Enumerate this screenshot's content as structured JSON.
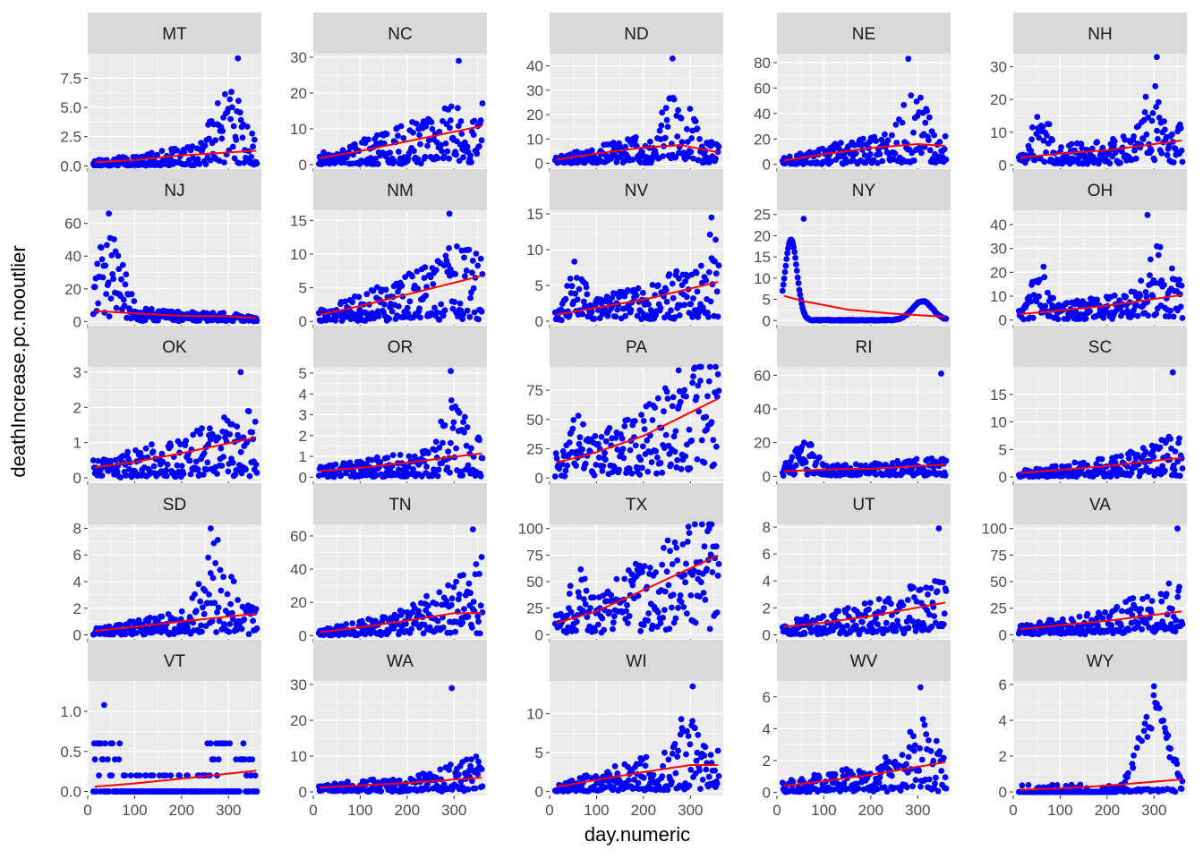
{
  "colors": {
    "panel_bg": "#ebebeb",
    "grid": "#ffffff",
    "strip_bg": "#d9d9d9",
    "point": "#0000ff",
    "smooth": "#ff0000",
    "tick_text": "#4d4d4d",
    "strip_text": "#1a1a1a"
  },
  "chart_data": {
    "type": "scatter",
    "layout": "facet_wrap",
    "xlabel": "day.numeric",
    "ylabel": "deathIncrease.pc.nooutlier",
    "xlim": [
      0,
      370
    ],
    "x_ticks": [
      0,
      100,
      200,
      300
    ],
    "grid": true,
    "point_color": "blue",
    "smooth_color": "red",
    "panels": [
      {
        "name": "MT",
        "ylim": [
          -0.2,
          9.6
        ],
        "y_ticks": [
          "0.0",
          "2.5",
          "5.0",
          "7.5"
        ],
        "trend": [
          [
            15,
            0.3
          ],
          [
            100,
            0.5
          ],
          [
            200,
            0.9
          ],
          [
            360,
            1.3
          ]
        ],
        "profile": "late",
        "peak": 6,
        "peak_x": 300,
        "max_point": [
          320,
          9.2
        ]
      },
      {
        "name": "NC",
        "ylim": [
          -1,
          31
        ],
        "y_ticks": [
          "0",
          "10",
          "20",
          "30"
        ],
        "trend": [
          [
            15,
            1.8
          ],
          [
            100,
            3.8
          ],
          [
            200,
            6.5
          ],
          [
            360,
            10.8
          ]
        ],
        "profile": "rising",
        "peak": 22,
        "peak_x": 320,
        "max_point": [
          310,
          29
        ]
      },
      {
        "name": "ND",
        "ylim": [
          -2,
          45
        ],
        "y_ticks": [
          "0",
          "10",
          "20",
          "30",
          "40"
        ],
        "trend": [
          [
            15,
            1.5
          ],
          [
            100,
            4
          ],
          [
            200,
            6.5
          ],
          [
            280,
            7.5
          ],
          [
            360,
            4.5
          ]
        ],
        "profile": "late",
        "peak": 28,
        "peak_x": 270,
        "max_point": [
          262,
          43
        ]
      },
      {
        "name": "NE",
        "ylim": [
          -3,
          87
        ],
        "y_ticks": [
          "0",
          "20",
          "40",
          "60",
          "80"
        ],
        "trend": [
          [
            15,
            3
          ],
          [
            100,
            8
          ],
          [
            200,
            13
          ],
          [
            300,
            16
          ],
          [
            360,
            14.5
          ]
        ],
        "profile": "late",
        "peak": 55,
        "peak_x": 290,
        "max_point": [
          280,
          83
        ]
      },
      {
        "name": "NH",
        "ylim": [
          -1,
          34
        ],
        "y_ticks": [
          "0",
          "10",
          "20",
          "30"
        ],
        "trend": [
          [
            15,
            2.2
          ],
          [
            100,
            3.5
          ],
          [
            200,
            4.5
          ],
          [
            360,
            7.5
          ]
        ],
        "profile": "double",
        "peak": 22,
        "peak_x": 300,
        "max_point": [
          306,
          33
        ]
      },
      {
        "name": "NJ",
        "ylim": [
          -2,
          68
        ],
        "y_ticks": [
          "0",
          "20",
          "40",
          "60"
        ],
        "trend": [
          [
            15,
            6.5
          ],
          [
            100,
            5
          ],
          [
            200,
            3.5
          ],
          [
            300,
            3.2
          ],
          [
            360,
            2
          ]
        ],
        "profile": "double",
        "peak": 50,
        "peak_x": 45,
        "max_point": [
          45,
          66
        ]
      },
      {
        "name": "NM",
        "ylim": [
          -0.5,
          16.5
        ],
        "y_ticks": [
          "0",
          "5",
          "10",
          "15"
        ],
        "trend": [
          [
            15,
            1
          ],
          [
            100,
            2.3
          ],
          [
            200,
            4
          ],
          [
            360,
            6.8
          ]
        ],
        "profile": "late",
        "peak": 12,
        "peak_x": 290,
        "max_point": [
          290,
          16
        ]
      },
      {
        "name": "NV",
        "ylim": [
          -0.5,
          15.5
        ],
        "y_ticks": [
          "0",
          "5",
          "10",
          "15"
        ],
        "trend": [
          [
            15,
            0.9
          ],
          [
            100,
            1.9
          ],
          [
            200,
            3
          ],
          [
            360,
            5.5
          ]
        ],
        "profile": "double",
        "peak": 11,
        "peak_x": 340,
        "max_point": [
          345,
          14.5
        ]
      },
      {
        "name": "NY",
        "ylim": [
          -1,
          26
        ],
        "y_ticks": [
          "0",
          "5",
          "10",
          "15",
          "20",
          "25"
        ],
        "trend": [
          [
            15,
            5.8
          ],
          [
            60,
            4.5
          ],
          [
            150,
            2.6
          ],
          [
            250,
            1.6
          ],
          [
            360,
            0.9
          ]
        ],
        "profile": "spring",
        "peak": 19,
        "peak_x": 30,
        "max_point": [
          57,
          24
        ]
      },
      {
        "name": "OH",
        "ylim": [
          -2,
          46
        ],
        "y_ticks": [
          "0",
          "10",
          "20",
          "30",
          "40"
        ],
        "trend": [
          [
            15,
            2.5
          ],
          [
            100,
            4
          ],
          [
            200,
            6
          ],
          [
            360,
            10.5
          ]
        ],
        "profile": "double",
        "peak": 30,
        "peak_x": 310,
        "max_point": [
          286,
          44
        ]
      },
      {
        "name": "OK",
        "ylim": [
          -0.1,
          3.15
        ],
        "y_ticks": [
          "0",
          "1",
          "2",
          "3"
        ],
        "trend": [
          [
            15,
            0.3
          ],
          [
            100,
            0.45
          ],
          [
            200,
            0.7
          ],
          [
            360,
            1.15
          ]
        ],
        "profile": "rising",
        "peak": 2.4,
        "peak_x": 330,
        "max_point": [
          326,
          3
        ]
      },
      {
        "name": "OR",
        "ylim": [
          -0.2,
          5.3
        ],
        "y_ticks": [
          "0",
          "1",
          "2",
          "3",
          "4",
          "5"
        ],
        "trend": [
          [
            15,
            0.3
          ],
          [
            100,
            0.45
          ],
          [
            200,
            0.7
          ],
          [
            360,
            1.15
          ]
        ],
        "profile": "late",
        "peak": 3.5,
        "peak_x": 300,
        "max_point": [
          293,
          5.1
        ]
      },
      {
        "name": "PA",
        "ylim": [
          -3,
          95
        ],
        "y_ticks": [
          "0",
          "25",
          "50",
          "75"
        ],
        "trend": [
          [
            15,
            13
          ],
          [
            100,
            22
          ],
          [
            200,
            36
          ],
          [
            360,
            68
          ]
        ],
        "profile": "double",
        "peak": 70,
        "peak_x": 300,
        "max_point": [
          275,
          92
        ]
      },
      {
        "name": "RI",
        "ylim": [
          -3,
          65
        ],
        "y_ticks": [
          "0",
          "20",
          "40",
          "60"
        ],
        "trend": [
          [
            15,
            3
          ],
          [
            100,
            4
          ],
          [
            200,
            4.5
          ],
          [
            360,
            7
          ]
        ],
        "profile": "double",
        "peak": 18,
        "peak_x": 60,
        "max_point": [
          350,
          61
        ]
      },
      {
        "name": "SC",
        "ylim": [
          -0.8,
          20
        ],
        "y_ticks": [
          "0",
          "5",
          "10",
          "15"
        ],
        "trend": [
          [
            15,
            0.7
          ],
          [
            100,
            1.3
          ],
          [
            200,
            2
          ],
          [
            360,
            3.5
          ]
        ],
        "profile": "rising",
        "peak": 8,
        "peak_x": 340,
        "max_point": [
          340,
          19
        ]
      },
      {
        "name": "SD",
        "ylim": [
          -0.3,
          8.3
        ],
        "y_ticks": [
          "0",
          "2",
          "4",
          "6",
          "8"
        ],
        "trend": [
          [
            15,
            0.3
          ],
          [
            100,
            0.6
          ],
          [
            200,
            1
          ],
          [
            360,
            1.6
          ]
        ],
        "profile": "late",
        "peak": 6.5,
        "peak_x": 275,
        "max_point": [
          262,
          8
        ]
      },
      {
        "name": "TN",
        "ylim": [
          -2,
          67
        ],
        "y_ticks": [
          "0",
          "20",
          "40",
          "60"
        ],
        "trend": [
          [
            15,
            2
          ],
          [
            100,
            5
          ],
          [
            200,
            9
          ],
          [
            300,
            13.5
          ],
          [
            360,
            13.5
          ]
        ],
        "profile": "rising",
        "peak": 45,
        "peak_x": 330,
        "max_point": [
          340,
          64
        ]
      },
      {
        "name": "TX",
        "ylim": [
          -4,
          104
        ],
        "y_ticks": [
          "0",
          "25",
          "50",
          "75",
          "100"
        ],
        "trend": [
          [
            15,
            11
          ],
          [
            100,
            22
          ],
          [
            200,
            42
          ],
          [
            360,
            75
          ]
        ],
        "profile": "double",
        "peak": 85,
        "peak_x": 300,
        "max_point": [
          340,
          100
        ]
      },
      {
        "name": "UT",
        "ylim": [
          -0.3,
          8.2
        ],
        "y_ticks": [
          "0",
          "2",
          "4",
          "6",
          "8"
        ],
        "trend": [
          [
            15,
            0.6
          ],
          [
            100,
            0.9
          ],
          [
            200,
            1.4
          ],
          [
            360,
            2.4
          ]
        ],
        "profile": "rising",
        "peak": 5,
        "peak_x": 320,
        "max_point": [
          345,
          7.9
        ]
      },
      {
        "name": "VA",
        "ylim": [
          -4,
          104
        ],
        "y_ticks": [
          "0",
          "25",
          "50",
          "75",
          "100"
        ],
        "trend": [
          [
            15,
            5
          ],
          [
            100,
            9
          ],
          [
            200,
            13
          ],
          [
            360,
            22
          ]
        ],
        "profile": "rising",
        "peak": 60,
        "peak_x": 345,
        "max_point": [
          350,
          100
        ]
      },
      {
        "name": "VT",
        "ylim": [
          -0.05,
          1.38
        ],
        "y_ticks": [
          "0.0",
          "0.5",
          "1.0"
        ],
        "trend": [
          [
            15,
            0.06
          ],
          [
            100,
            0.1
          ],
          [
            200,
            0.16
          ],
          [
            360,
            0.26
          ]
        ],
        "profile": "banded",
        "peak": 0.65,
        "peak_x": 300,
        "max_point": [
          35,
          1.08
        ]
      },
      {
        "name": "WA",
        "ylim": [
          -1,
          31
        ],
        "y_ticks": [
          "0",
          "10",
          "20",
          "30"
        ],
        "trend": [
          [
            15,
            1.2
          ],
          [
            100,
            1.8
          ],
          [
            200,
            2.5
          ],
          [
            360,
            4
          ]
        ],
        "profile": "rising",
        "peak": 10,
        "peak_x": 330,
        "max_point": [
          295,
          29
        ]
      },
      {
        "name": "WI",
        "ylim": [
          -0.5,
          14.2
        ],
        "y_ticks": [
          "0",
          "5",
          "10"
        ],
        "trend": [
          [
            15,
            0.6
          ],
          [
            100,
            1.5
          ],
          [
            200,
            2.5
          ],
          [
            300,
            3.4
          ],
          [
            360,
            3.4
          ]
        ],
        "profile": "late",
        "peak": 9,
        "peak_x": 290,
        "max_point": [
          305,
          13.5
        ]
      },
      {
        "name": "WV",
        "ylim": [
          -0.2,
          7
        ],
        "y_ticks": [
          "0",
          "2",
          "4",
          "6"
        ],
        "trend": [
          [
            15,
            0.4
          ],
          [
            100,
            0.7
          ],
          [
            200,
            1.1
          ],
          [
            360,
            1.9
          ]
        ],
        "profile": "late",
        "peak": 4.5,
        "peak_x": 310,
        "max_point": [
          306,
          6.6
        ]
      },
      {
        "name": "WY",
        "ylim": [
          -0.2,
          6.2
        ],
        "y_ticks": [
          "0",
          "2",
          "4",
          "6"
        ],
        "trend": [
          [
            15,
            0.12
          ],
          [
            100,
            0.2
          ],
          [
            200,
            0.35
          ],
          [
            360,
            0.7
          ]
        ],
        "profile": "wy",
        "peak": 5.5,
        "peak_x": 300,
        "max_point": [
          300,
          5.9
        ]
      }
    ]
  }
}
